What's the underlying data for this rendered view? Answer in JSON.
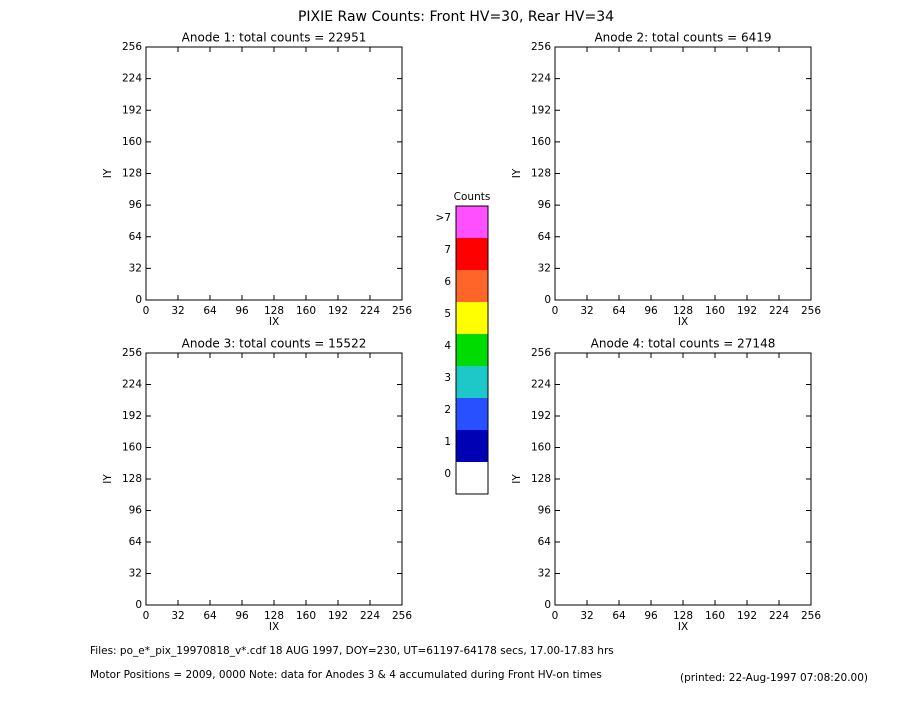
{
  "title": "PIXIE Raw Counts:  Front HV=30, Rear HV=34",
  "chart_data": [
    {
      "type": "heatmap",
      "title": "Anode 1: total counts = 22951",
      "xlabel": "IX",
      "ylabel": "IY",
      "xlim": [
        0,
        256
      ],
      "ylim": [
        0,
        256
      ],
      "xticks": [
        0,
        32,
        64,
        96,
        128,
        160,
        192,
        224,
        256
      ],
      "yticks": [
        0,
        32,
        64,
        96,
        128,
        160,
        192,
        224,
        256
      ]
    },
    {
      "type": "heatmap",
      "title": "Anode 2: total counts = 6419",
      "xlabel": "IX",
      "ylabel": "IY",
      "xlim": [
        0,
        256
      ],
      "ylim": [
        0,
        256
      ],
      "xticks": [
        0,
        32,
        64,
        96,
        128,
        160,
        192,
        224,
        256
      ],
      "yticks": [
        0,
        32,
        64,
        96,
        128,
        160,
        192,
        224,
        256
      ]
    },
    {
      "type": "heatmap",
      "title": "Anode 3: total counts = 15522",
      "xlabel": "IX",
      "ylabel": "IY",
      "xlim": [
        0,
        256
      ],
      "ylim": [
        0,
        256
      ],
      "xticks": [
        0,
        32,
        64,
        96,
        128,
        160,
        192,
        224,
        256
      ],
      "yticks": [
        0,
        32,
        64,
        96,
        128,
        160,
        192,
        224,
        256
      ]
    },
    {
      "type": "heatmap",
      "title": "Anode 4: total counts = 27148",
      "xlabel": "IX",
      "ylabel": "IY",
      "xlim": [
        0,
        256
      ],
      "ylim": [
        0,
        256
      ],
      "xticks": [
        0,
        32,
        64,
        96,
        128,
        160,
        192,
        224,
        256
      ],
      "yticks": [
        0,
        32,
        64,
        96,
        128,
        160,
        192,
        224,
        256
      ]
    }
  ],
  "colorbar": {
    "title": "Counts",
    "labels": [
      "0",
      "1",
      "2",
      "3",
      "4",
      "5",
      "6",
      "7",
      ">7"
    ],
    "colors": [
      "#ffffff",
      "#0000b4",
      "#2850ff",
      "#1ec8c8",
      "#00dc00",
      "#ffff00",
      "#ff6428",
      "#ff0000",
      "#ff50ff"
    ]
  },
  "footer": {
    "files": "Files: po_e*_pix_19970818_v*.cdf    18 AUG 1997, DOY=230, UT=61197-64178 secs, 17.00-17.83 hrs",
    "motor": "Motor Positions = 2009, 0000   Note: data for Anodes 3 & 4 accumulated during Front HV-on times",
    "printed": "(printed: 22-Aug-1997 07:08:20.00)"
  }
}
